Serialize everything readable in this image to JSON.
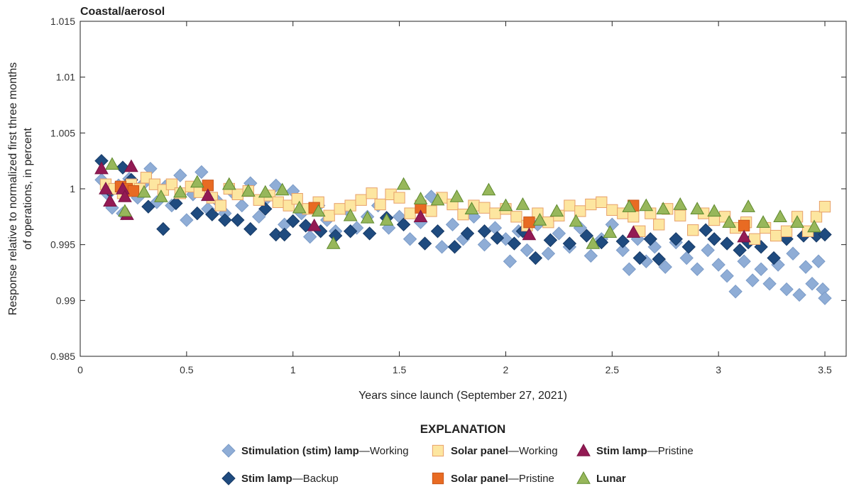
{
  "chart_data": {
    "type": "scatter",
    "title": "Coastal/aerosol",
    "xlabel": "Years since launch (September 27, 2021)",
    "ylabel": [
      "Response relative to normalized first three months",
      "of operations, in percent"
    ],
    "xlim": [
      0,
      3.6
    ],
    "ylim": [
      0.985,
      1.015
    ],
    "xticks": [
      0,
      0.5,
      1,
      1.5,
      2,
      2.5,
      3,
      3.5
    ],
    "xtick_labels": [
      "0",
      "0.5",
      "1",
      "1.5",
      "2",
      "2.5",
      "3",
      "3.5"
    ],
    "yticks": [
      0.985,
      0.99,
      0.995,
      1,
      1.005,
      1.01,
      1.015
    ],
    "ytick_labels": [
      "0.985",
      "0.99",
      "0.995",
      "1",
      "1.005",
      "1.01",
      "1.015"
    ],
    "grid": false,
    "legend_title": "EXPLANATION",
    "legend_placement": "bottom",
    "series": [
      {
        "name": "Stimulation (stim) lamp—Working",
        "name_bold": "Stimulation (stim) lamp",
        "name_rest": "—Working",
        "marker": "diamond",
        "color": "#8fadd6",
        "stroke": "#7c9cc8",
        "points": [
          [
            0.1,
            1.0008
          ],
          [
            0.13,
            0.9995
          ],
          [
            0.15,
            0.9983
          ],
          [
            0.18,
            1.0003
          ],
          [
            0.2,
            0.9978
          ],
          [
            0.23,
            1.0009
          ],
          [
            0.27,
            0.9992
          ],
          [
            0.3,
            1.0005
          ],
          [
            0.33,
            1.0018
          ],
          [
            0.36,
            0.9988
          ],
          [
            0.4,
            1.0002
          ],
          [
            0.43,
            0.9985
          ],
          [
            0.47,
            1.0012
          ],
          [
            0.5,
            0.9972
          ],
          [
            0.53,
            0.9995
          ],
          [
            0.57,
            1.0015
          ],
          [
            0.6,
            0.9982
          ],
          [
            0.64,
            0.999
          ],
          [
            0.68,
            0.9978
          ],
          [
            0.72,
            0.9996
          ],
          [
            0.76,
            0.9985
          ],
          [
            0.8,
            1.0005
          ],
          [
            0.84,
            0.9975
          ],
          [
            0.88,
            0.9992
          ],
          [
            0.92,
            1.0003
          ],
          [
            0.96,
            0.9968
          ],
          [
            1.0,
            0.9998
          ],
          [
            1.04,
            0.9978
          ],
          [
            1.08,
            0.9957
          ],
          [
            1.12,
            0.9985
          ],
          [
            1.16,
            0.9972
          ],
          [
            1.2,
            0.9962
          ],
          [
            1.25,
            0.9982
          ],
          [
            1.3,
            0.9965
          ],
          [
            1.35,
            0.9975
          ],
          [
            1.4,
            0.9985
          ],
          [
            1.45,
            0.9965
          ],
          [
            1.5,
            0.9975
          ],
          [
            1.55,
            0.9955
          ],
          [
            1.6,
            0.997
          ],
          [
            1.65,
            0.9993
          ],
          [
            1.7,
            0.9948
          ],
          [
            1.75,
            0.9968
          ],
          [
            1.8,
            0.9955
          ],
          [
            1.85,
            0.9975
          ],
          [
            1.9,
            0.995
          ],
          [
            1.95,
            0.9965
          ],
          [
            2.0,
            0.9955
          ],
          [
            2.02,
            0.9935
          ],
          [
            2.06,
            0.9962
          ],
          [
            2.1,
            0.9945
          ],
          [
            2.15,
            0.9968
          ],
          [
            2.2,
            0.9942
          ],
          [
            2.25,
            0.996
          ],
          [
            2.3,
            0.9948
          ],
          [
            2.35,
            0.9965
          ],
          [
            2.4,
            0.994
          ],
          [
            2.45,
            0.9955
          ],
          [
            2.5,
            0.9968
          ],
          [
            2.55,
            0.9945
          ],
          [
            2.58,
            0.9928
          ],
          [
            2.62,
            0.9955
          ],
          [
            2.66,
            0.9935
          ],
          [
            2.7,
            0.9948
          ],
          [
            2.75,
            0.993
          ],
          [
            2.8,
            0.9952
          ],
          [
            2.85,
            0.9938
          ],
          [
            2.9,
            0.9928
          ],
          [
            2.95,
            0.9945
          ],
          [
            3.0,
            0.9932
          ],
          [
            3.04,
            0.9922
          ],
          [
            3.08,
            0.9908
          ],
          [
            3.12,
            0.9935
          ],
          [
            3.16,
            0.9918
          ],
          [
            3.2,
            0.9928
          ],
          [
            3.24,
            0.9915
          ],
          [
            3.28,
            0.9932
          ],
          [
            3.32,
            0.991
          ],
          [
            3.35,
            0.9942
          ],
          [
            3.38,
            0.9905
          ],
          [
            3.41,
            0.993
          ],
          [
            3.44,
            0.9915
          ],
          [
            3.47,
            0.9935
          ],
          [
            3.49,
            0.991
          ],
          [
            3.5,
            0.9902
          ]
        ]
      },
      {
        "name": "Stim lamp—Backup",
        "name_bold": "Stim lamp",
        "name_rest": "—Backup",
        "marker": "diamond",
        "color": "#1f4b7f",
        "stroke": "#173a66",
        "points": [
          [
            0.1,
            1.0025
          ],
          [
            0.14,
            0.9998
          ],
          [
            0.2,
            1.0019
          ],
          [
            0.24,
            1.0008
          ],
          [
            0.32,
            0.9984
          ],
          [
            0.39,
            0.9964
          ],
          [
            0.45,
            0.9987
          ],
          [
            0.55,
            0.9978
          ],
          [
            0.62,
            0.9977
          ],
          [
            0.68,
            0.9972
          ],
          [
            0.74,
            0.9972
          ],
          [
            0.8,
            0.9964
          ],
          [
            0.87,
            0.9982
          ],
          [
            0.92,
            0.9959
          ],
          [
            0.96,
            0.9959
          ],
          [
            1.0,
            0.9971
          ],
          [
            1.06,
            0.9967
          ],
          [
            1.13,
            0.9962
          ],
          [
            1.2,
            0.9958
          ],
          [
            1.27,
            0.9962
          ],
          [
            1.36,
            0.996
          ],
          [
            1.44,
            0.9974
          ],
          [
            1.52,
            0.9968
          ],
          [
            1.62,
            0.9951
          ],
          [
            1.68,
            0.9962
          ],
          [
            1.76,
            0.9948
          ],
          [
            1.82,
            0.996
          ],
          [
            1.9,
            0.9962
          ],
          [
            1.96,
            0.9956
          ],
          [
            2.04,
            0.9951
          ],
          [
            2.08,
            0.9962
          ],
          [
            2.14,
            0.9938
          ],
          [
            2.21,
            0.9954
          ],
          [
            2.3,
            0.9951
          ],
          [
            2.38,
            0.9958
          ],
          [
            2.45,
            0.9952
          ],
          [
            2.55,
            0.9953
          ],
          [
            2.63,
            0.9938
          ],
          [
            2.68,
            0.9955
          ],
          [
            2.72,
            0.9937
          ],
          [
            2.8,
            0.9955
          ],
          [
            2.86,
            0.9948
          ],
          [
            2.94,
            0.9963
          ],
          [
            2.98,
            0.9955
          ],
          [
            3.04,
            0.9951
          ],
          [
            3.1,
            0.9945
          ],
          [
            3.14,
            0.9952
          ],
          [
            3.2,
            0.9948
          ],
          [
            3.26,
            0.9938
          ],
          [
            3.32,
            0.9955
          ],
          [
            3.4,
            0.9958
          ],
          [
            3.46,
            0.9958
          ],
          [
            3.5,
            0.9959
          ]
        ]
      },
      {
        "name": "Solar panel—Working",
        "name_bold": "Solar panel",
        "name_rest": "—Working",
        "marker": "square",
        "color": "#fde6a0",
        "stroke": "#e7a06a",
        "points": [
          [
            0.12,
            1.0004
          ],
          [
            0.16,
            1.0
          ],
          [
            0.2,
            0.9996
          ],
          [
            0.24,
            1.0004
          ],
          [
            0.28,
            1.0
          ],
          [
            0.31,
            1.001
          ],
          [
            0.35,
            1.0004
          ],
          [
            0.39,
            0.9999
          ],
          [
            0.43,
            1.0004
          ],
          [
            0.47,
            0.9996
          ],
          [
            0.52,
            1.0002
          ],
          [
            0.56,
            0.9997
          ],
          [
            0.62,
            0.9992
          ],
          [
            0.66,
            0.9985
          ],
          [
            0.7,
            1.0
          ],
          [
            0.74,
            0.9995
          ],
          [
            0.79,
            0.9998
          ],
          [
            0.84,
            0.999
          ],
          [
            0.89,
            0.9994
          ],
          [
            0.93,
            0.9988
          ],
          [
            0.98,
            0.9985
          ],
          [
            1.02,
            0.9991
          ],
          [
            1.07,
            0.9982
          ],
          [
            1.12,
            0.9988
          ],
          [
            1.17,
            0.9976
          ],
          [
            1.22,
            0.9982
          ],
          [
            1.27,
            0.9985
          ],
          [
            1.32,
            0.999
          ],
          [
            1.37,
            0.9996
          ],
          [
            1.41,
            0.9986
          ],
          [
            1.46,
            0.9995
          ],
          [
            1.5,
            0.9992
          ],
          [
            1.55,
            0.9978
          ],
          [
            1.6,
            0.9985
          ],
          [
            1.65,
            0.998
          ],
          [
            1.7,
            0.9992
          ],
          [
            1.75,
            0.9986
          ],
          [
            1.8,
            0.9977
          ],
          [
            1.85,
            0.9985
          ],
          [
            1.9,
            0.9983
          ],
          [
            1.95,
            0.9978
          ],
          [
            2.0,
            0.9982
          ],
          [
            2.05,
            0.9975
          ],
          [
            2.1,
            0.9967
          ],
          [
            2.15,
            0.9978
          ],
          [
            2.2,
            0.997
          ],
          [
            2.25,
            0.9976
          ],
          [
            2.3,
            0.9985
          ],
          [
            2.35,
            0.998
          ],
          [
            2.4,
            0.9986
          ],
          [
            2.45,
            0.9988
          ],
          [
            2.5,
            0.9981
          ],
          [
            2.55,
            0.9978
          ],
          [
            2.6,
            0.9975
          ],
          [
            2.63,
            0.9962
          ],
          [
            2.68,
            0.9978
          ],
          [
            2.72,
            0.9968
          ],
          [
            2.76,
            0.9982
          ],
          [
            2.82,
            0.9976
          ],
          [
            2.88,
            0.9963
          ],
          [
            2.93,
            0.9978
          ],
          [
            2.98,
            0.9972
          ],
          [
            3.03,
            0.9975
          ],
          [
            3.08,
            0.9965
          ],
          [
            3.13,
            0.997
          ],
          [
            3.17,
            0.9955
          ],
          [
            3.22,
            0.9965
          ],
          [
            3.27,
            0.9958
          ],
          [
            3.32,
            0.9962
          ],
          [
            3.37,
            0.9975
          ],
          [
            3.42,
            0.9962
          ],
          [
            3.46,
            0.9975
          ],
          [
            3.5,
            0.9984
          ]
        ]
      },
      {
        "name": "Solar panel—Pristine",
        "name_bold": "Solar panel",
        "name_rest": "—Pristine",
        "marker": "square",
        "color": "#e86b23",
        "stroke": "#c9561a",
        "points": [
          [
            0.19,
            1.0002
          ],
          [
            0.22,
            1.0
          ],
          [
            0.25,
            0.9998
          ],
          [
            0.6,
            1.0003
          ],
          [
            1.1,
            0.9983
          ],
          [
            1.6,
            0.9983
          ],
          [
            2.11,
            0.997
          ],
          [
            2.6,
            0.9985
          ],
          [
            3.12,
            0.9967
          ]
        ]
      },
      {
        "name": "Stim lamp—Pristine",
        "name_bold": "Stim lamp",
        "name_rest": "—Pristine",
        "marker": "triangle",
        "color": "#931a54",
        "stroke": "#7a1345",
        "points": [
          [
            0.1,
            1.0018
          ],
          [
            0.12,
            1.0
          ],
          [
            0.14,
            0.9989
          ],
          [
            0.2,
            1.0
          ],
          [
            0.21,
            0.9993
          ],
          [
            0.22,
            0.9977
          ],
          [
            0.24,
            1.002
          ],
          [
            0.6,
            0.9994
          ],
          [
            1.1,
            0.9967
          ],
          [
            1.6,
            0.9975
          ],
          [
            2.11,
            0.9959
          ],
          [
            2.6,
            0.9961
          ],
          [
            3.12,
            0.9957
          ]
        ]
      },
      {
        "name": "Lunar",
        "name_bold": "Lunar",
        "name_rest": "",
        "marker": "triangle",
        "color": "#97b75b",
        "stroke": "#5f8a2e",
        "points": [
          [
            0.15,
            1.0022
          ],
          [
            0.21,
            0.998
          ],
          [
            0.3,
            0.9997
          ],
          [
            0.38,
            0.9993
          ],
          [
            0.47,
            0.9997
          ],
          [
            0.55,
            1.0006
          ],
          [
            0.7,
            1.0004
          ],
          [
            0.79,
            0.9998
          ],
          [
            0.87,
            0.9997
          ],
          [
            0.95,
            0.9999
          ],
          [
            1.03,
            0.9983
          ],
          [
            1.12,
            0.998
          ],
          [
            1.19,
            0.9951
          ],
          [
            1.27,
            0.9976
          ],
          [
            1.35,
            0.9974
          ],
          [
            1.44,
            0.9972
          ],
          [
            1.52,
            1.0004
          ],
          [
            1.6,
            0.9991
          ],
          [
            1.68,
            0.999
          ],
          [
            1.77,
            0.9993
          ],
          [
            1.84,
            0.9982
          ],
          [
            1.92,
            0.9999
          ],
          [
            2.0,
            0.9985
          ],
          [
            2.08,
            0.9986
          ],
          [
            2.16,
            0.9972
          ],
          [
            2.24,
            0.998
          ],
          [
            2.33,
            0.9971
          ],
          [
            2.41,
            0.9951
          ],
          [
            2.49,
            0.9961
          ],
          [
            2.58,
            0.9984
          ],
          [
            2.66,
            0.9985
          ],
          [
            2.74,
            0.9982
          ],
          [
            2.82,
            0.9986
          ],
          [
            2.9,
            0.9982
          ],
          [
            2.98,
            0.998
          ],
          [
            3.05,
            0.997
          ],
          [
            3.14,
            0.9984
          ],
          [
            3.21,
            0.997
          ],
          [
            3.29,
            0.9975
          ],
          [
            3.37,
            0.997
          ],
          [
            3.45,
            0.9966
          ]
        ]
      }
    ]
  }
}
